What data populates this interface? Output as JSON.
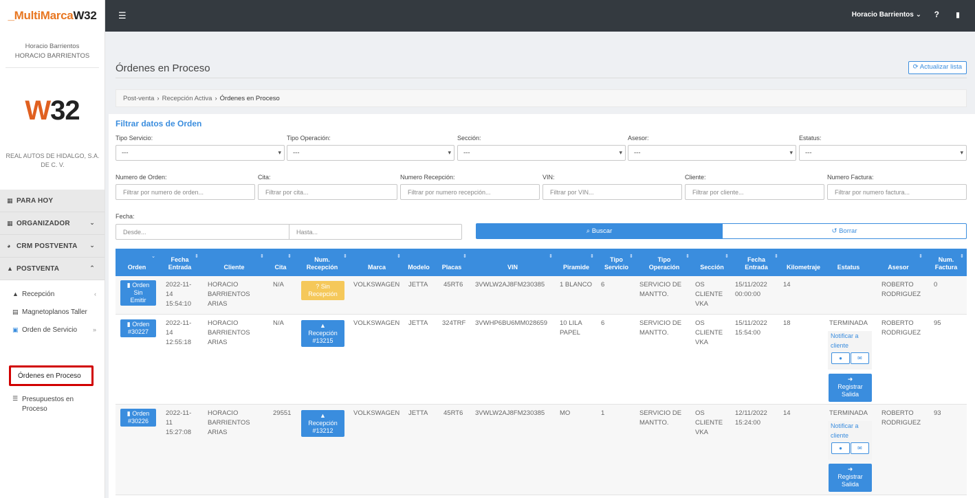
{
  "header": {
    "logo_part1": "_MultiMarca",
    "logo_part2": "W32",
    "menu_icon": "hamburger-icon",
    "user_name": "Horacio Barrientos",
    "help_label": "?",
    "clipboard_icon": "clipboard-icon"
  },
  "sidebar": {
    "user_line1": "Horacio Barrientos",
    "user_line2": "HORACIO BARRIENTOS",
    "brand_w": "W",
    "brand_num": "32",
    "company_line1": "REAL AUTOS DE HIDALGO, S.A.",
    "company_line2": "DE C. V.",
    "groups": [
      {
        "label": "PARA HOY",
        "icon": "calendar-icon"
      },
      {
        "label": "ORGANIZADOR",
        "icon": "grid-icon"
      },
      {
        "label": "CRM POSTVENTA",
        "icon": "user-edit-icon"
      },
      {
        "label": "POSTVENTA",
        "icon": "car-icon"
      }
    ],
    "items": [
      {
        "label": "Recepción",
        "icon": "car-icon"
      },
      {
        "label": "Magnetoplanos Taller",
        "icon": "calendar-icon"
      },
      {
        "label": "Orden de Servicio",
        "icon": "check-square-icon"
      },
      {
        "label": "Órdenes en Proceso"
      },
      {
        "label_line1": "Presupuestos en",
        "label_line2": "Proceso",
        "icon": "list-icon"
      }
    ]
  },
  "main": {
    "title": "Órdenes en Proceso",
    "refresh_label": "Actualizar lista",
    "breadcrumb": [
      "Post-venta",
      "Recepción Activa",
      "Órdenes en Proceso"
    ],
    "filter_title": "Filtrar datos de Orden",
    "filters": {
      "tipo_servicio": {
        "label": "Tipo Servicio:",
        "value": "---"
      },
      "tipo_operacion": {
        "label": "Tipo Operación:",
        "value": "---"
      },
      "seccion": {
        "label": "Sección:",
        "value": "---"
      },
      "asesor": {
        "label": "Asesor:",
        "value": "---"
      },
      "estatus": {
        "label": "Estatus:",
        "value": "---"
      },
      "numero_orden": {
        "label": "Numero de Orden:",
        "placeholder": "Filtrar por numero de orden..."
      },
      "cita": {
        "label": "Cita:",
        "placeholder": "Filtrar por cita..."
      },
      "numero_recepcion": {
        "label": "Numero Recepción:",
        "placeholder": "Filtrar por numero recepción..."
      },
      "vin": {
        "label": "VIN:",
        "placeholder": "Filtrar por VIN..."
      },
      "cliente": {
        "label": "Cliente:",
        "placeholder": "Filtrar por cliente..."
      },
      "numero_factura": {
        "label": "Numero Factura:",
        "placeholder": "Filtrar por numero factura..."
      },
      "fecha": {
        "label": "Fecha:",
        "desde": "Desde...",
        "hasta": "Hasta..."
      }
    },
    "buscar_label": "Buscar",
    "borrar_label": "Borrar",
    "columns": [
      {
        "l1": "",
        "l2": "Orden"
      },
      {
        "l1": "Fecha",
        "l2": "Entrada"
      },
      {
        "l1": "",
        "l2": "Cliente"
      },
      {
        "l1": "",
        "l2": "Cita"
      },
      {
        "l1": "Num.",
        "l2": "Recepción"
      },
      {
        "l1": "",
        "l2": "Marca"
      },
      {
        "l1": "",
        "l2": "Modelo"
      },
      {
        "l1": "",
        "l2": "Placas"
      },
      {
        "l1": "",
        "l2": "VIN"
      },
      {
        "l1": "",
        "l2": "Piramide"
      },
      {
        "l1": "Tipo",
        "l2": "Servicio"
      },
      {
        "l1": "Tipo",
        "l2": "Operación"
      },
      {
        "l1": "",
        "l2": "Sección"
      },
      {
        "l1": "Fecha",
        "l2": "Entrada"
      },
      {
        "l1": "",
        "l2": "Kilometraje"
      },
      {
        "l1": "",
        "l2": "Estatus"
      },
      {
        "l1": "",
        "l2": "Asesor"
      },
      {
        "l1": "Num.",
        "l2": "Factura"
      }
    ],
    "rows": [
      {
        "orden": [
          "Orden",
          "Sin",
          "Emitir"
        ],
        "fecha": [
          "2022-11-",
          "14",
          "15:54:10"
        ],
        "cliente": [
          "HORACIO",
          "BARRIENTOS",
          "ARIAS"
        ],
        "cita": "N/A",
        "recepcion": [
          "Sin",
          "Recepción"
        ],
        "marca": "VOLKSWAGEN",
        "modelo": "JETTA",
        "placas": "45RT6",
        "vin": "3VWLW2AJ8FM230385",
        "piramide": [
          "1 BLANCO"
        ],
        "tipo_servicio": "6",
        "tipo_operacion": [
          "SERVICIO DE",
          "MANTTO."
        ],
        "seccion": [
          "OS",
          "CLIENTE",
          "VKA"
        ],
        "fecha_entrada": [
          "15/11/2022",
          "00:00:00"
        ],
        "kilometraje": "14",
        "estatus": "",
        "asesor": [
          "ROBERTO",
          "RODRIGUEZ"
        ],
        "factura": "0"
      },
      {
        "orden": [
          "Orden",
          "#30227"
        ],
        "fecha": [
          "2022-11-",
          "14",
          "12:55:18"
        ],
        "cliente": [
          "HORACIO",
          "BARRIENTOS",
          "ARIAS"
        ],
        "cita": "N/A",
        "recepcion": [
          "Recepción",
          "#13215"
        ],
        "marca": "VOLKSWAGEN",
        "modelo": "JETTA",
        "placas": "324TRF",
        "vin": "3VWHP6BU6MM028659",
        "piramide": [
          "10 LILA",
          "PAPEL"
        ],
        "tipo_servicio": "6",
        "tipo_operacion": [
          "SERVICIO DE",
          "MANTTO."
        ],
        "seccion": [
          "OS",
          "CLIENTE",
          "VKA"
        ],
        "fecha_entrada": [
          "15/11/2022",
          "15:54:00"
        ],
        "kilometraje": "18",
        "estatus": "TERMINADA",
        "notify": [
          "Notificar a",
          "cliente"
        ],
        "salida": [
          "Registrar",
          "Salida"
        ],
        "asesor": [
          "ROBERTO",
          "RODRIGUEZ"
        ],
        "factura": "95"
      },
      {
        "orden": [
          "Orden",
          "#30226"
        ],
        "fecha": [
          "2022-11-",
          "11",
          "15:27:08"
        ],
        "cliente": [
          "HORACIO",
          "BARRIENTOS",
          "ARIAS"
        ],
        "cita": "29551",
        "recepcion": [
          "Recepción",
          "#13212"
        ],
        "marca": "VOLKSWAGEN",
        "modelo": "JETTA",
        "placas": "45RT6",
        "vin": "3VWLW2AJ8FM230385",
        "piramide": [
          "MO"
        ],
        "tipo_servicio": "1",
        "tipo_operacion": [
          "SERVICIO DE",
          "MANTTO."
        ],
        "seccion": [
          "OS",
          "CLIENTE",
          "VKA"
        ],
        "fecha_entrada": [
          "12/11/2022",
          "15:24:00"
        ],
        "kilometraje": "14",
        "estatus": "TERMINADA",
        "notify": [
          "Notificar a",
          "cliente"
        ],
        "salida": [
          "Registrar",
          "Salida"
        ],
        "asesor": [
          "ROBERTO",
          "RODRIGUEZ"
        ],
        "factura": "93"
      }
    ]
  }
}
